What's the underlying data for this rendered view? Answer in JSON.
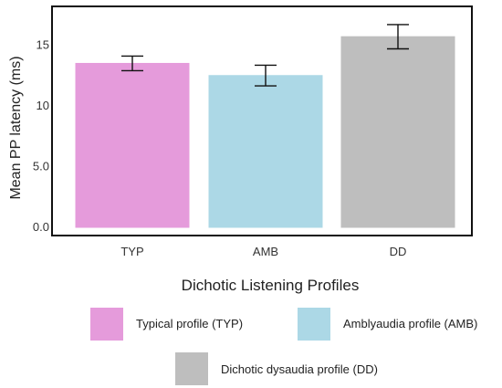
{
  "chart_data": {
    "type": "bar",
    "categories": [
      "TYP",
      "AMB",
      "DD"
    ],
    "values": [
      13.5,
      12.5,
      15.7
    ],
    "error": [
      0.6,
      0.85,
      1.0
    ],
    "colors": [
      "#e59bdb",
      "#acd8e6",
      "#bebebe"
    ],
    "xlabel": "Dichotic Listening Profiles",
    "ylabel": "Mean PP latency (ms)",
    "ylim": [
      0,
      17.7
    ],
    "yticks": [
      {
        "value": 0,
        "label": "0.0"
      },
      {
        "value": 5,
        "label": "5.0"
      },
      {
        "value": 10,
        "label": "10"
      },
      {
        "value": 15,
        "label": "15"
      }
    ],
    "grid": false,
    "legend": {
      "placement": "bottom",
      "entries": [
        {
          "label": "Typical profile (TYP)",
          "color": "#e59bdb"
        },
        {
          "label": "Amblyaudia profile (AMB)",
          "color": "#acd8e6"
        },
        {
          "label": "Dichotic dysaudia profile (DD)",
          "color": "#bebebe"
        }
      ]
    }
  }
}
